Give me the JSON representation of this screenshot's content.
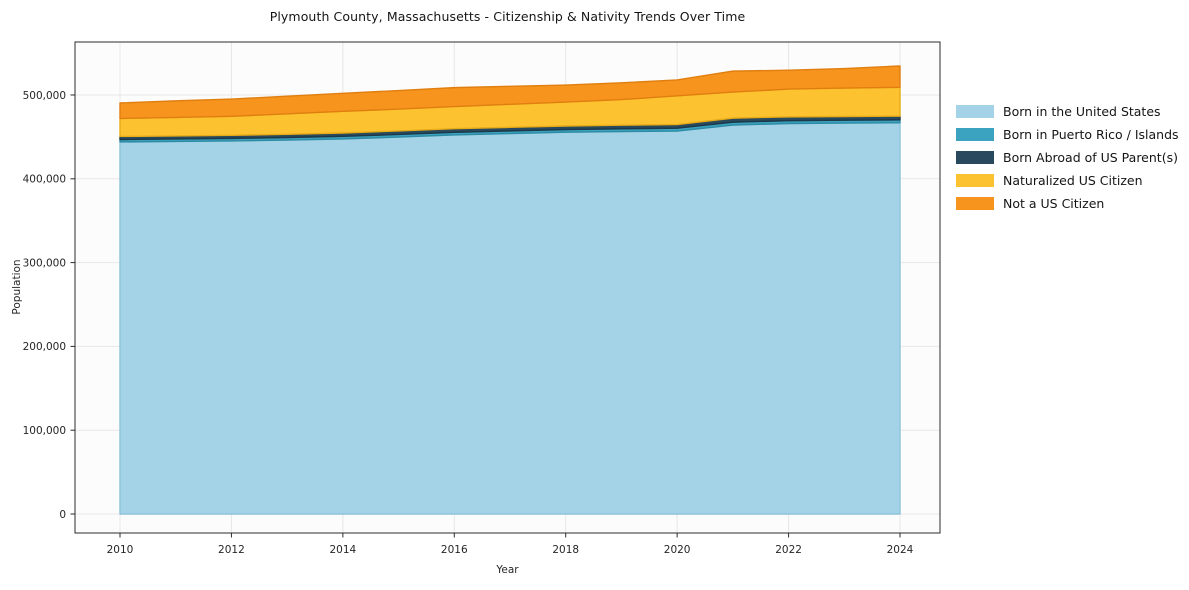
{
  "chart_data": {
    "type": "area",
    "stacked": true,
    "title": "Plymouth County, Massachusetts - Citizenship & Nativity Trends Over Time",
    "xlabel": "Year",
    "ylabel": "Population",
    "x": [
      2010,
      2011,
      2012,
      2013,
      2014,
      2015,
      2016,
      2017,
      2018,
      2019,
      2020,
      2021,
      2022,
      2023,
      2024
    ],
    "x_ticks": [
      2010,
      2012,
      2014,
      2016,
      2018,
      2020,
      2022,
      2024
    ],
    "y_ticks": [
      0,
      100000,
      200000,
      300000,
      400000,
      500000
    ],
    "ylim": [
      -22700,
      563000
    ],
    "xlim": [
      2009.2,
      2024.7
    ],
    "grid": true,
    "legend_position": "right-outside",
    "series": [
      {
        "name": "Born in the United States",
        "color": "#a4d2e7",
        "edge": "#8cc3db",
        "values": [
          444000,
          444600,
          445200,
          446200,
          447600,
          449800,
          452400,
          454000,
          455600,
          456400,
          457000,
          464100,
          466000,
          466500,
          466900
        ]
      },
      {
        "name": "Born in Puerto Rico / Islands",
        "color": "#3ba3bf",
        "edge": "#2e8ba5",
        "values": [
          2900,
          2950,
          3000,
          3000,
          3050,
          3100,
          3100,
          3150,
          3200,
          3300,
          3400,
          3500,
          3350,
          3400,
          3500
        ]
      },
      {
        "name": "Born Abroad of US Parent(s)",
        "color": "#28495e",
        "edge": "#1d3848",
        "values": [
          3600,
          3650,
          3700,
          3900,
          4000,
          4200,
          4300,
          4250,
          4200,
          4300,
          4300,
          4800,
          4550,
          4450,
          4400
        ]
      },
      {
        "name": "Naturalized US Citizen",
        "color": "#fdc22f",
        "edge": "#e7ab17",
        "values": [
          21500,
          22000,
          22700,
          24400,
          25900,
          26100,
          26400,
          27500,
          28600,
          30500,
          34300,
          31100,
          33200,
          33900,
          34400
        ]
      },
      {
        "name": "Not a US Citizen",
        "color": "#f7941e",
        "edge": "#e07f10",
        "values": [
          18500,
          19800,
          20500,
          21100,
          21500,
          22100,
          22600,
          21500,
          20300,
          20000,
          19000,
          25000,
          22500,
          23300,
          25500
        ]
      }
    ],
    "colors": {
      "grid": "#e7e7e7",
      "spine": "#2b2b2b",
      "plot_bg": "#fcfcfc",
      "tick_text": "#262626"
    }
  }
}
